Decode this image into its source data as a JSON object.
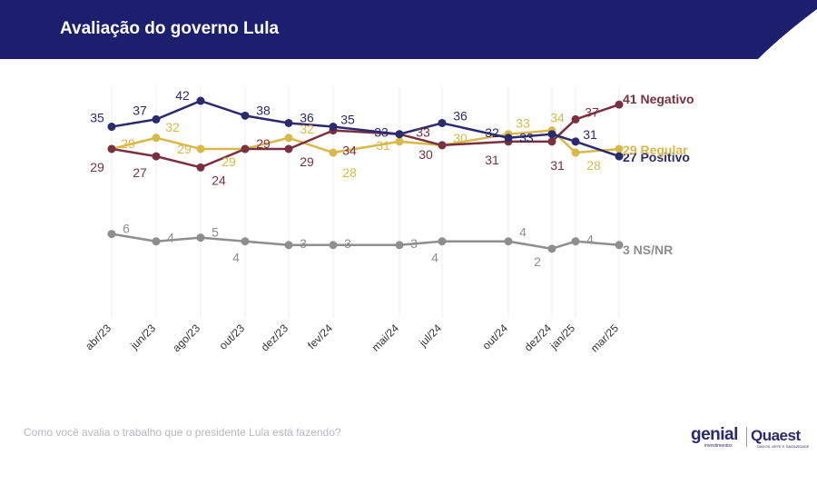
{
  "header": {
    "title": "Avaliação do governo Lula"
  },
  "footnote": "Como você avalia o trabalho que o presidente Lula está fazendo?",
  "logos": {
    "genial": "genial",
    "genial_sub": "investimentos",
    "quaest": "Quaest",
    "quaest_sub": "DADOS, ARTE E SAGAZIDADE"
  },
  "colors": {
    "header_bg": "#1c1f6e",
    "positivo": "#2b2a6e",
    "negativo": "#7a3040",
    "regular": "#d9b84a",
    "nsnr": "#8e8e8e"
  },
  "chart_data": {
    "type": "line",
    "title": "Avaliação do governo Lula",
    "x": [
      "abr/23",
      "jun/23",
      "ago/23",
      "out/23",
      "dez/23",
      "fev/24",
      "mai/24",
      "jul/24",
      "out/24",
      "dez/24",
      "jan/25",
      "mar/25"
    ],
    "ylim": [
      0,
      45
    ],
    "grid": "vertical",
    "series": [
      {
        "name": "Positivo",
        "end_label": "27 Positivo",
        "color": "#2b2a6e",
        "values": [
          35,
          37,
          42,
          38,
          36,
          35,
          33,
          36,
          32,
          33,
          31,
          27
        ]
      },
      {
        "name": "Negativo",
        "end_label": "41 Negativo",
        "color": "#7a3040",
        "values": [
          29,
          27,
          24,
          29,
          29,
          34,
          33,
          30,
          31,
          31,
          37,
          41
        ]
      },
      {
        "name": "Regular",
        "end_label": "29 Regular",
        "color": "#d9b84a",
        "values": [
          29,
          32,
          29,
          29,
          32,
          28,
          31,
          30,
          33,
          34,
          28,
          29
        ]
      },
      {
        "name": "NS/NR",
        "end_label": "3 NS/NR",
        "color": "#8e8e8e",
        "values": [
          6,
          4,
          5,
          4,
          3,
          3,
          3,
          4,
          4,
          2,
          4,
          3
        ]
      }
    ]
  }
}
